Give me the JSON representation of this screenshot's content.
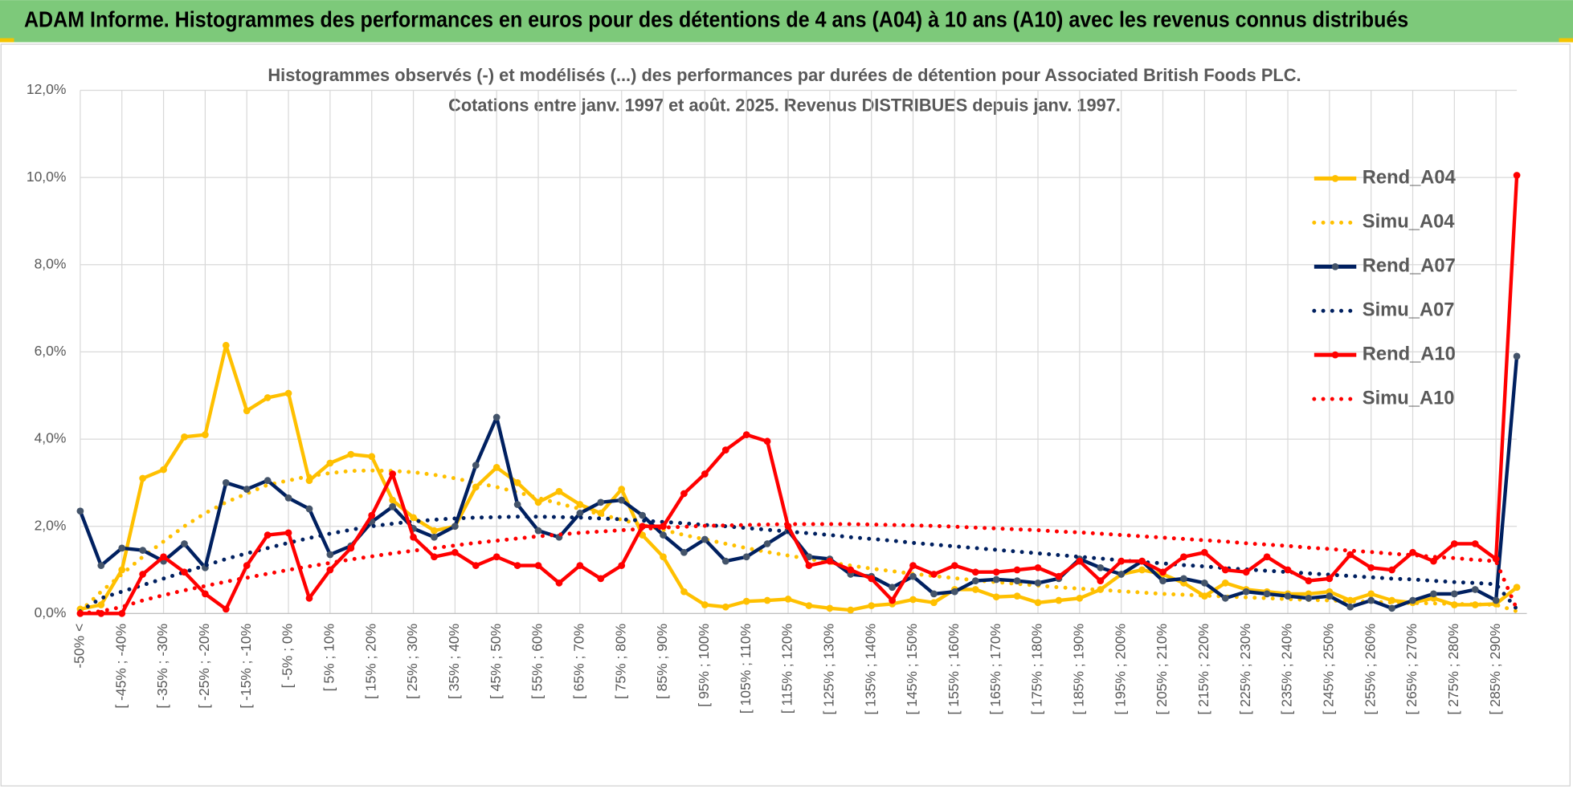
{
  "chart_data": {
    "type": "line",
    "header": "ADAM Informe. Histogrammes des performances en euros pour des détentions de 4 ans (A04) à 10 ans (A10) avec les revenus connus distribués",
    "title": "Histogrammes observés (-) et modélisés (...) des performances par durées de détention pour Associated British Foods PLC.",
    "subtitle": "Cotations entre janv. 1997 et août. 2025. Revenus DISTRIBUES depuis janv. 1997.",
    "categories": [
      "-50% <",
      null,
      "[ -45% ; -40%",
      null,
      "[ -35% ; -30%",
      null,
      "[ -25% ; -20%",
      null,
      "[ -15% ; -10%",
      null,
      "[ -5% ; 0%",
      null,
      "[ 5% ; 10%",
      null,
      "[ 15% ; 20%",
      null,
      "[ 25% ; 30%",
      null,
      "[ 35% ; 40%",
      null,
      "[ 45% ; 50%",
      null,
      "[ 55% ; 60%",
      null,
      "[ 65% ; 70%",
      null,
      "[ 75% ; 80%",
      null,
      "[ 85% ; 90%",
      null,
      "[ 95% ; 100%",
      null,
      "[ 105% ; 110%",
      null,
      "[ 115% ; 120%",
      null,
      "[ 125% ; 130%",
      null,
      "[ 135% ; 140%",
      null,
      "[ 145% ; 150%",
      null,
      "[ 155% ; 160%",
      null,
      "[ 165% ; 170%",
      null,
      "[ 175% ; 180%",
      null,
      "[ 185% ; 190%",
      null,
      "[ 195% ; 200%",
      null,
      "[ 205% ; 210%",
      null,
      "[ 215% ; 220%",
      null,
      "[ 225% ; 230%",
      null,
      "[ 235% ; 240%",
      null,
      "[ 245% ; 250%",
      null,
      "[ 255% ; 260%",
      null,
      "[ 265% ; 270%",
      null,
      "[ 275% ; 280%",
      null,
      "[ 285% ; 290%",
      null
    ],
    "series": [
      {
        "name": "Rend_A04",
        "color": "#ffc000",
        "style": "solid",
        "marker": true,
        "values": [
          0.1,
          0.2,
          1.0,
          3.1,
          3.3,
          4.05,
          4.1,
          6.15,
          4.65,
          4.95,
          5.05,
          3.05,
          3.45,
          3.65,
          3.6,
          2.6,
          2.2,
          1.9,
          2.0,
          2.9,
          3.35,
          3.0,
          2.55,
          2.8,
          2.5,
          2.3,
          2.85,
          1.8,
          1.3,
          0.5,
          0.2,
          0.15,
          0.28,
          0.3,
          0.33,
          0.18,
          0.12,
          0.08,
          0.18,
          0.22,
          0.32,
          0.25,
          0.55,
          0.55,
          0.38,
          0.4,
          0.25,
          0.3,
          0.35,
          0.55,
          0.9,
          1.0,
          0.9,
          0.7,
          0.4,
          0.7,
          0.55,
          0.5,
          0.45,
          0.45,
          0.5,
          0.3,
          0.45,
          0.3,
          0.25,
          0.35,
          0.2,
          0.2,
          0.22,
          0.6
        ]
      },
      {
        "name": "Simu_A04",
        "color": "#ffc000",
        "style": "dotted",
        "marker": false,
        "values": [
          0.05,
          0.5,
          0.9,
          1.3,
          1.65,
          2.0,
          2.3,
          2.55,
          2.75,
          2.95,
          3.05,
          3.15,
          3.22,
          3.27,
          3.28,
          3.27,
          3.24,
          3.18,
          3.1,
          3.0,
          2.9,
          2.78,
          2.65,
          2.52,
          2.4,
          2.27,
          2.15,
          2.03,
          1.92,
          1.8,
          1.7,
          1.6,
          1.5,
          1.41,
          1.33,
          1.25,
          1.17,
          1.1,
          1.03,
          0.97,
          0.91,
          0.86,
          0.81,
          0.76,
          0.72,
          0.68,
          0.64,
          0.6,
          0.57,
          0.54,
          0.51,
          0.48,
          0.45,
          0.43,
          0.41,
          0.39,
          0.37,
          0.35,
          0.33,
          0.31,
          0.3,
          0.28,
          0.27,
          0.25,
          0.24,
          0.23,
          0.22,
          0.21,
          0.2,
          0.05
        ]
      },
      {
        "name": "Rend_A07",
        "color": "#002060",
        "style": "solid",
        "marker": true,
        "values": [
          2.35,
          1.1,
          1.5,
          1.45,
          1.2,
          1.6,
          1.05,
          3.0,
          2.85,
          3.05,
          2.65,
          2.4,
          1.35,
          1.55,
          2.1,
          2.45,
          1.95,
          1.75,
          2.0,
          3.4,
          4.5,
          2.5,
          1.9,
          1.75,
          2.3,
          2.55,
          2.6,
          2.25,
          1.8,
          1.4,
          1.7,
          1.2,
          1.3,
          1.6,
          1.9,
          1.3,
          1.25,
          0.9,
          0.85,
          0.6,
          0.85,
          0.45,
          0.5,
          0.75,
          0.78,
          0.75,
          0.7,
          0.8,
          1.25,
          1.05,
          0.9,
          1.2,
          0.75,
          0.8,
          0.7,
          0.35,
          0.5,
          0.45,
          0.4,
          0.35,
          0.4,
          0.15,
          0.3,
          0.12,
          0.3,
          0.45,
          0.45,
          0.55,
          0.3,
          5.9
        ]
      },
      {
        "name": "Simu_A07",
        "color": "#002060",
        "style": "dotted",
        "marker": false,
        "values": [
          0.05,
          0.35,
          0.5,
          0.65,
          0.8,
          0.95,
          1.1,
          1.25,
          1.38,
          1.5,
          1.62,
          1.73,
          1.83,
          1.92,
          2.0,
          2.06,
          2.11,
          2.15,
          2.18,
          2.2,
          2.21,
          2.22,
          2.22,
          2.21,
          2.2,
          2.18,
          2.16,
          2.13,
          2.1,
          2.07,
          2.03,
          2.0,
          1.96,
          1.92,
          1.88,
          1.84,
          1.8,
          1.75,
          1.71,
          1.67,
          1.62,
          1.58,
          1.54,
          1.5,
          1.46,
          1.42,
          1.38,
          1.34,
          1.3,
          1.26,
          1.22,
          1.18,
          1.15,
          1.11,
          1.08,
          1.04,
          1.01,
          0.98,
          0.95,
          0.92,
          0.89,
          0.86,
          0.83,
          0.8,
          0.78,
          0.75,
          0.72,
          0.7,
          0.67,
          0.1
        ]
      },
      {
        "name": "Rend_A10",
        "color": "#ff0000",
        "style": "solid",
        "marker": true,
        "values": [
          0,
          0,
          0,
          0.9,
          1.3,
          0.95,
          0.45,
          0.1,
          1.1,
          1.8,
          1.85,
          0.35,
          1.0,
          1.5,
          2.25,
          3.2,
          1.75,
          1.3,
          1.4,
          1.1,
          1.3,
          1.1,
          1.1,
          0.7,
          1.1,
          0.8,
          1.1,
          2.0,
          2.0,
          2.75,
          3.2,
          3.75,
          4.1,
          3.95,
          2.0,
          1.1,
          1.2,
          1.0,
          0.8,
          0.3,
          1.1,
          0.9,
          1.1,
          0.95,
          0.95,
          1.0,
          1.05,
          0.85,
          1.2,
          0.75,
          1.2,
          1.2,
          0.95,
          1.3,
          1.4,
          1.0,
          0.95,
          1.3,
          1.0,
          0.75,
          0.8,
          1.35,
          1.05,
          1.0,
          1.4,
          1.2,
          1.6,
          1.6,
          1.25,
          10.05
        ]
      },
      {
        "name": "Simu_A10",
        "color": "#ff0000",
        "style": "dotted",
        "marker": false,
        "values": [
          0,
          0.05,
          0.15,
          0.3,
          0.42,
          0.53,
          0.63,
          0.73,
          0.82,
          0.91,
          1.0,
          1.08,
          1.16,
          1.24,
          1.31,
          1.38,
          1.44,
          1.5,
          1.56,
          1.62,
          1.67,
          1.72,
          1.77,
          1.81,
          1.85,
          1.88,
          1.91,
          1.94,
          1.97,
          1.99,
          2.01,
          2.02,
          2.03,
          2.04,
          2.05,
          2.05,
          2.05,
          2.05,
          2.04,
          2.03,
          2.02,
          2.01,
          1.99,
          1.97,
          1.95,
          1.93,
          1.91,
          1.88,
          1.86,
          1.83,
          1.8,
          1.77,
          1.74,
          1.71,
          1.68,
          1.65,
          1.61,
          1.58,
          1.55,
          1.51,
          1.48,
          1.44,
          1.41,
          1.37,
          1.34,
          1.3,
          1.27,
          1.23,
          1.2,
          0.1
        ]
      }
    ],
    "ylim": [
      0,
      12
    ],
    "yticks": [
      {
        "value": 0,
        "label": "0,0%"
      },
      {
        "value": 2,
        "label": "2,0%"
      },
      {
        "value": 4,
        "label": "4,0%"
      },
      {
        "value": 6,
        "label": "6,0%"
      },
      {
        "value": 8,
        "label": "8,0%"
      },
      {
        "value": 10,
        "label": "10,0%"
      },
      {
        "value": 12,
        "label": "12,0%"
      }
    ],
    "grid": true,
    "legend": "top-right"
  }
}
